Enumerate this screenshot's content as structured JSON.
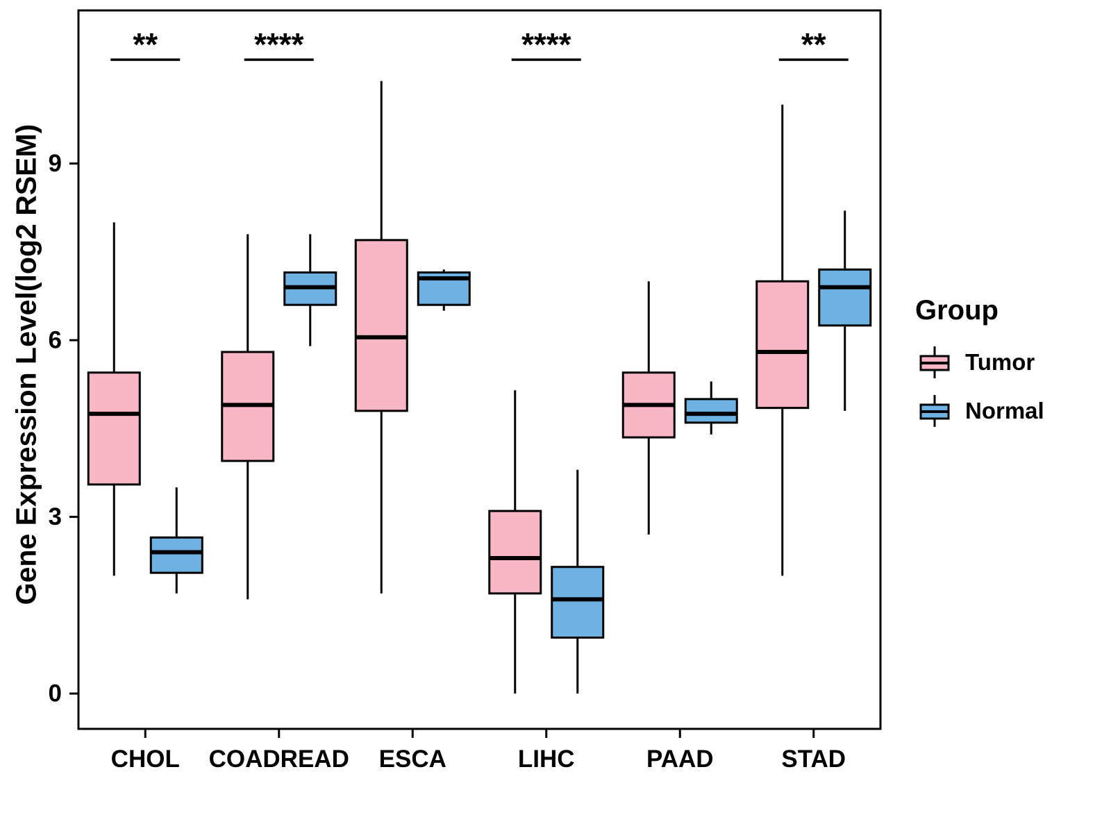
{
  "chart_data": {
    "type": "boxplot",
    "title": "",
    "xlabel": "",
    "ylabel": "Gene Expression Level(log2 RSEM)",
    "ylim": [
      -0.6,
      11.6
    ],
    "yticks": [
      0,
      3,
      6,
      9
    ],
    "grid": false,
    "categories": [
      "CHOL",
      "COADREAD",
      "ESCA",
      "LIHC",
      "PAAD",
      "STAD"
    ],
    "legend": {
      "title": "Group",
      "position": "right",
      "entries": [
        {
          "label": "Tumor",
          "color": "#F9B7C5"
        },
        {
          "label": "Normal",
          "color": "#6EB2E4"
        }
      ]
    },
    "significance": [
      {
        "category": "CHOL",
        "label": "**"
      },
      {
        "category": "COADREAD",
        "label": "****"
      },
      {
        "category": "LIHC",
        "label": "****"
      },
      {
        "category": "STAD",
        "label": "**"
      }
    ],
    "series": [
      {
        "name": "Tumor",
        "color": "#F9B7C5",
        "boxes": [
          {
            "category": "CHOL",
            "min": 2.0,
            "q1": 3.55,
            "median": 4.75,
            "q3": 5.45,
            "max": 8.0
          },
          {
            "category": "COADREAD",
            "min": 1.6,
            "q1": 3.95,
            "median": 4.9,
            "q3": 5.8,
            "max": 7.8
          },
          {
            "category": "ESCA",
            "min": 1.7,
            "q1": 4.8,
            "median": 6.05,
            "q3": 7.7,
            "max": 10.4
          },
          {
            "category": "LIHC",
            "min": 0.0,
            "q1": 1.7,
            "median": 2.3,
            "q3": 3.1,
            "max": 5.15
          },
          {
            "category": "PAAD",
            "min": 2.7,
            "q1": 4.35,
            "median": 4.9,
            "q3": 5.45,
            "max": 7.0
          },
          {
            "category": "STAD",
            "min": 2.0,
            "q1": 4.85,
            "median": 5.8,
            "q3": 7.0,
            "max": 10.0
          }
        ]
      },
      {
        "name": "Normal",
        "color": "#6EB2E4",
        "boxes": [
          {
            "category": "CHOL",
            "min": 1.7,
            "q1": 2.05,
            "median": 2.4,
            "q3": 2.65,
            "max": 3.5
          },
          {
            "category": "COADREAD",
            "min": 5.9,
            "q1": 6.6,
            "median": 6.9,
            "q3": 7.15,
            "max": 7.8
          },
          {
            "category": "ESCA",
            "min": 6.5,
            "q1": 6.6,
            "median": 7.05,
            "q3": 7.15,
            "max": 7.2
          },
          {
            "category": "LIHC",
            "min": 0.0,
            "q1": 0.95,
            "median": 1.6,
            "q3": 2.15,
            "max": 3.8
          },
          {
            "category": "PAAD",
            "min": 4.4,
            "q1": 4.6,
            "median": 4.75,
            "q3": 5.0,
            "max": 5.3
          },
          {
            "category": "STAD",
            "min": 4.8,
            "q1": 6.25,
            "median": 6.9,
            "q3": 7.2,
            "max": 8.2
          }
        ]
      }
    ]
  }
}
